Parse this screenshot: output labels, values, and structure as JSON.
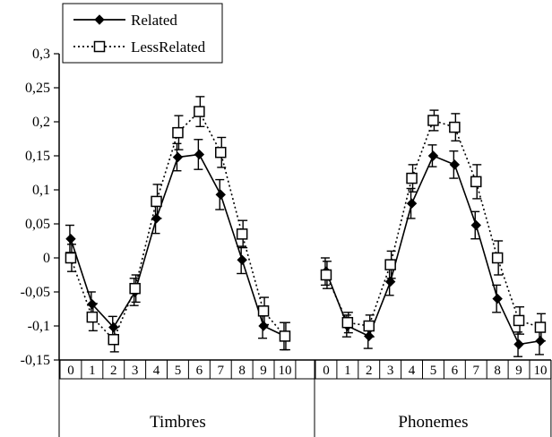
{
  "chart_data": {
    "type": "line",
    "title": "",
    "xlabel": "",
    "ylabel": "",
    "ylim": [
      -0.15,
      0.3
    ],
    "y_ticks": [
      -0.15,
      -0.1,
      -0.05,
      0,
      0.05,
      0.1,
      0.15,
      0.2,
      0.25,
      0.3
    ],
    "y_tick_labels": [
      "-0,15",
      "-0,1",
      "-0,05",
      "0",
      "0,05",
      "0,1",
      "0,15",
      "0,2",
      "0,25",
      "0,3"
    ],
    "grid": false,
    "legend": "top-left",
    "groups": [
      {
        "label": "Timbres",
        "x": [
          "0",
          "1",
          "2",
          "3",
          "4",
          "5",
          "6",
          "7",
          "8",
          "9",
          "10"
        ]
      },
      {
        "label": "Phonemes",
        "x": [
          "0",
          "1",
          "2",
          "3",
          "4",
          "5",
          "6",
          "7",
          "8",
          "9",
          "10"
        ]
      }
    ],
    "series": [
      {
        "name": "Related",
        "marker": "filled-diamond",
        "line_style": "solid",
        "color": "#000000",
        "groups": [
          {
            "values": [
              0.028,
              -0.068,
              -0.102,
              -0.05,
              0.058,
              0.148,
              0.152,
              0.093,
              -0.003,
              -0.1,
              -0.115
            ],
            "errors": [
              0.02,
              0.018,
              0.016,
              0.02,
              0.022,
              0.02,
              0.022,
              0.022,
              0.02,
              0.018,
              0.02
            ]
          },
          {
            "values": [
              -0.02,
              -0.1,
              -0.115,
              -0.035,
              0.08,
              0.15,
              0.137,
              0.048,
              -0.06,
              -0.127,
              -0.122
            ],
            "errors": [
              0.02,
              0.016,
              0.018,
              0.02,
              0.022,
              0.016,
              0.02,
              0.02,
              0.02,
              0.018,
              0.02
            ]
          }
        ]
      },
      {
        "name": "LessRelated",
        "marker": "hollow-square",
        "line_style": "dotted",
        "color": "#000000",
        "groups": [
          {
            "values": [
              0.0,
              -0.087,
              -0.12,
              -0.045,
              0.083,
              0.184,
              0.215,
              0.155,
              0.035,
              -0.078,
              -0.115
            ],
            "errors": [
              0.02,
              0.02,
              0.018,
              0.02,
              0.025,
              0.025,
              0.022,
              0.022,
              0.02,
              0.02,
              0.02
            ]
          },
          {
            "values": [
              -0.025,
              -0.095,
              -0.1,
              -0.01,
              0.117,
              0.202,
              0.192,
              0.112,
              0.0,
              -0.092,
              -0.102
            ],
            "errors": [
              0.02,
              0.015,
              0.016,
              0.02,
              0.02,
              0.015,
              0.02,
              0.025,
              0.025,
              0.02,
              0.02
            ]
          }
        ]
      }
    ]
  }
}
